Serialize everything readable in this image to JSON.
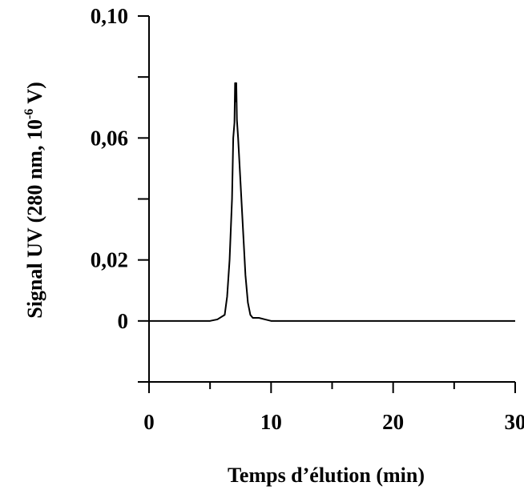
{
  "chart_data": {
    "type": "line",
    "title": "",
    "xlabel": "Temps d’élution (min)",
    "ylabel_main": "Signal UV (280 nm, 10",
    "ylabel_exp": "-6",
    "ylabel_tail": " V)",
    "xlim": [
      0,
      30
    ],
    "ylim": [
      -0.02,
      0.1
    ],
    "x_ticks": [
      {
        "value": 0,
        "label": "0"
      },
      {
        "value": 10,
        "label": "10"
      },
      {
        "value": 20,
        "label": "20"
      },
      {
        "value": 30,
        "label": "30"
      }
    ],
    "x_minor_ticks": [
      0,
      5,
      10,
      15,
      20,
      25,
      30
    ],
    "y_ticks": [
      {
        "value": 0.1,
        "label": "0,10"
      },
      {
        "value": 0.06,
        "label": "0,06"
      },
      {
        "value": 0.02,
        "label": "0,02"
      },
      {
        "value": 0,
        "label": "0"
      }
    ],
    "y_minor_ticks": [
      -0.02,
      0,
      0.02,
      0.04,
      0.06,
      0.08,
      0.1
    ],
    "grid": false,
    "legend": "none",
    "series": [
      {
        "color": "#000000",
        "x": [
          0,
          5.0,
          5.6,
          6.2,
          6.4,
          6.6,
          6.8,
          6.9,
          7.0,
          7.05,
          7.1,
          7.15,
          7.2,
          7.3,
          7.5,
          7.7,
          7.9,
          8.1,
          8.3,
          8.5,
          9.0,
          9.5,
          10.0,
          30
        ],
        "y": [
          0,
          0,
          0.0005,
          0.002,
          0.008,
          0.02,
          0.04,
          0.06,
          0.065,
          0.078,
          0.072,
          0.078,
          0.066,
          0.06,
          0.045,
          0.03,
          0.015,
          0.006,
          0.002,
          0.001,
          0.001,
          0.0005,
          0,
          0
        ]
      }
    ]
  }
}
